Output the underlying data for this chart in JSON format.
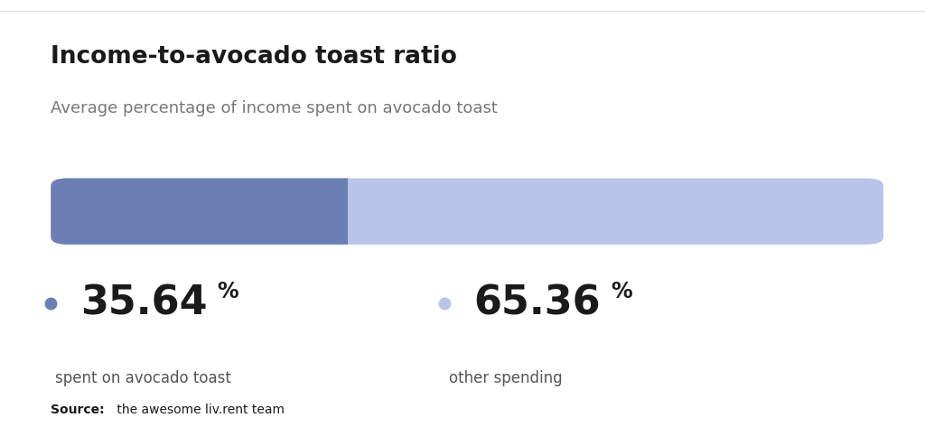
{
  "title": "Income-to-avocado toast ratio",
  "subtitle": "Average percentage of income spent on avocado toast",
  "value1": 35.64,
  "value2": 65.36,
  "label1": "spent on avocado toast",
  "label2": "other spending",
  "color1": "#6b7fb5",
  "color2": "#b8c4e8",
  "dot_color1": "#6b7fb5",
  "dot_color2": "#b8c4e8",
  "source_bold": "Source:",
  "source_text": " the awesome liv.rent team",
  "bg_color": "#ffffff",
  "title_color": "#1a1a1a",
  "subtitle_color": "#777777",
  "label_color": "#555555",
  "value_color": "#1a1a1a",
  "separator_color": "#dddddd"
}
